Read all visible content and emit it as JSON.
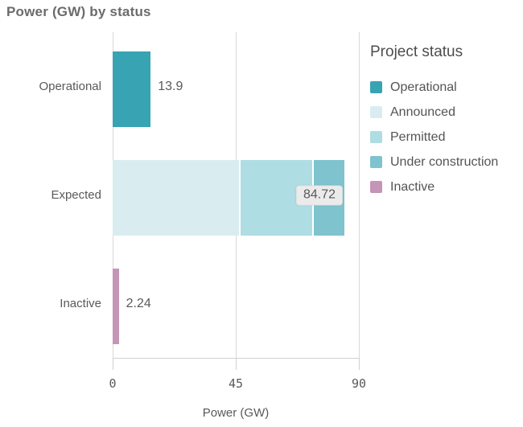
{
  "title": "Power (GW) by status",
  "chart_data": {
    "type": "bar",
    "orientation": "horizontal",
    "stacked": true,
    "title": "Power (GW) by status",
    "xlabel": "Power (GW)",
    "ylabel": "",
    "xlim": [
      0,
      90
    ],
    "xticks": [
      0,
      45,
      90
    ],
    "tick_labels": [
      "0",
      "45",
      "90"
    ],
    "grid": "vertical",
    "categories": [
      "Operational",
      "Expected",
      "Inactive"
    ],
    "rows": [
      {
        "category": "Operational",
        "segments": [
          {
            "status": "Operational",
            "value": 13.9
          }
        ],
        "total": 13.9,
        "label": "13.9",
        "label_style": "plain"
      },
      {
        "category": "Expected",
        "segments": [
          {
            "status": "Announced",
            "value": 46.2
          },
          {
            "status": "Permitted",
            "value": 26.8
          },
          {
            "status": "Under construction",
            "value": 11.72
          }
        ],
        "total": 84.72,
        "label": "84.72",
        "label_style": "boxed"
      },
      {
        "category": "Inactive",
        "segments": [
          {
            "status": "Inactive",
            "value": 2.24
          }
        ],
        "total": 2.24,
        "label": "2.24",
        "label_style": "plain"
      }
    ],
    "legend": {
      "title": "Project status",
      "position": "right",
      "entries": [
        {
          "label": "Operational",
          "color": "#38a3b3"
        },
        {
          "label": "Announced",
          "color": "#d9edf0"
        },
        {
          "label": "Permitted",
          "color": "#aedde3"
        },
        {
          "label": "Under construction",
          "color": "#7ec3cd"
        },
        {
          "label": "Inactive",
          "color": "#c495b6"
        }
      ]
    },
    "status_colors": {
      "Operational": "#38a3b3",
      "Announced": "#d9edf0",
      "Permitted": "#aedde3",
      "Under construction": "#7ec3cd",
      "Inactive": "#c495b6"
    }
  }
}
